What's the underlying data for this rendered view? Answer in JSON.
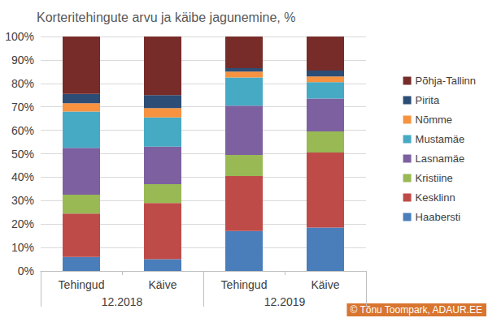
{
  "chart_data": {
    "type": "bar",
    "title": "Korteritehingute arvu ja käibe jagunemine, %",
    "categories": [
      "Tehingud",
      "Käive",
      "Tehingud",
      "Käive"
    ],
    "groups": [
      "12.2018",
      "12.2018",
      "12.2019",
      "12.2019"
    ],
    "series": [
      {
        "name": "Haabersti",
        "color": "#4a7ebb",
        "values": [
          6,
          5,
          17,
          18.5
        ]
      },
      {
        "name": "Kesklinn",
        "color": "#be4b48",
        "values": [
          18.5,
          24,
          23.5,
          32
        ]
      },
      {
        "name": "Kristiine",
        "color": "#98b954",
        "values": [
          8,
          8,
          9,
          9
        ]
      },
      {
        "name": "Lasnamäe",
        "color": "#7d60a0",
        "values": [
          20,
          16,
          21,
          14
        ]
      },
      {
        "name": "Mustamäe",
        "color": "#46aac5",
        "values": [
          15.5,
          12.5,
          12,
          7
        ]
      },
      {
        "name": "Nõmme",
        "color": "#f69240",
        "values": [
          3.5,
          4,
          2.5,
          2.5
        ]
      },
      {
        "name": "Pirita",
        "color": "#2c4d75",
        "values": [
          4,
          5.5,
          1.5,
          2.5
        ]
      },
      {
        "name": "Põhja-Tallinn",
        "color": "#772c2a",
        "values": [
          24.5,
          25,
          13.5,
          14.5
        ]
      }
    ],
    "ylim": [
      0,
      100
    ],
    "yticks": [
      {
        "value": 0,
        "label": "0%"
      },
      {
        "value": 10,
        "label": "10%"
      },
      {
        "value": 20,
        "label": "20%"
      },
      {
        "value": 30,
        "label": "30%"
      },
      {
        "value": 40,
        "label": "40%"
      },
      {
        "value": 50,
        "label": "50%"
      },
      {
        "value": 60,
        "label": "60%"
      },
      {
        "value": 70,
        "label": "70%"
      },
      {
        "value": 80,
        "label": "80%"
      },
      {
        "value": 90,
        "label": "90%"
      },
      {
        "value": 100,
        "label": "100%"
      }
    ],
    "stacked": true,
    "grid": true,
    "legend": "right",
    "credit": "© Tõnu Toompark, ADAUR.EE"
  }
}
